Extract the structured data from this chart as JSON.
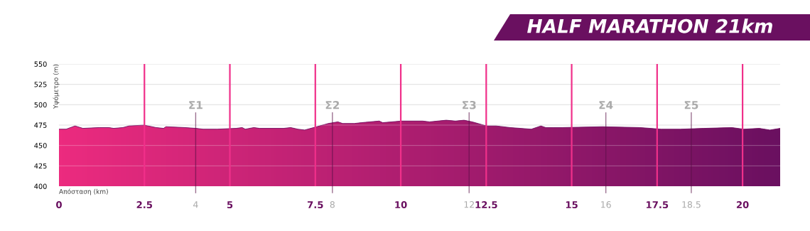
{
  "chart_data": {
    "type": "area",
    "title": "HALF MARATHON 21km",
    "xlabel": "Απόσταση (km)",
    "ylabel": "Υψόμετρο (m)",
    "xlim": [
      0,
      21.1
    ],
    "ylim": [
      400,
      550
    ],
    "xticks": [
      0,
      2.5,
      4,
      5,
      7.5,
      8,
      10,
      12,
      12.5,
      15,
      16,
      17.5,
      18.5,
      20
    ],
    "yticks": [
      400,
      425,
      450,
      475,
      500,
      525,
      550
    ],
    "grid": "y",
    "series": [
      {
        "color": "#ec2b7f",
        "x": [
          0,
          0.21,
          0.47,
          0.7,
          1.18,
          1.46,
          1.6,
          1.87,
          2.05,
          2.49,
          2.84,
          3.06,
          3.13,
          3.68,
          4.01,
          4.22,
          4.63,
          5.18,
          5.36,
          5.45,
          5.7,
          5.87,
          6.57,
          6.78,
          6.99,
          7.19,
          7.54,
          7.88,
          8.16,
          8.3,
          8.64,
          8.85,
          9.37,
          9.47,
          10.02,
          10.64,
          10.84,
          11.33,
          11.6,
          11.85,
          12.09,
          12.51,
          12.79,
          13.2,
          13.82,
          14.1,
          14.24,
          14.45,
          14.72,
          15.9,
          17.0,
          17.62,
          18.18,
          18.87,
          19.69,
          20.03,
          20.49,
          20.8,
          21.1
        ],
        "values": [
          470,
          470,
          474,
          471,
          472,
          472,
          471,
          472,
          474,
          475,
          472,
          471,
          473,
          472,
          471,
          470,
          470,
          471,
          472,
          470,
          472,
          471,
          471,
          472,
          470,
          469,
          473,
          477,
          479,
          477,
          477,
          478,
          480,
          478,
          480,
          480,
          479,
          481,
          480,
          481,
          479,
          474,
          474,
          472,
          470,
          474,
          472,
          472,
          472,
          473,
          472,
          470,
          470,
          471,
          472,
          470,
          471,
          469,
          471
        ]
      }
    ],
    "ref_lines": [
      {
        "axis": "x",
        "value": 2.5,
        "label": null,
        "color": "#f0308a"
      },
      {
        "axis": "x",
        "value": 5,
        "label": null,
        "color": "#f0308a"
      },
      {
        "axis": "x",
        "value": 7.5,
        "label": null,
        "color": "#f0308a"
      },
      {
        "axis": "x",
        "value": 10,
        "label": null,
        "color": "#f0308a"
      },
      {
        "axis": "x",
        "value": 12.5,
        "label": null,
        "color": "#f0308a"
      },
      {
        "axis": "x",
        "value": 15,
        "label": null,
        "color": "#f0308a"
      },
      {
        "axis": "x",
        "value": 17.5,
        "label": null,
        "color": "#f0308a"
      },
      {
        "axis": "x",
        "value": 20,
        "label": null,
        "color": "#f0308a"
      },
      {
        "axis": "x",
        "value": 4,
        "label": "Σ1",
        "color": "#5a1048"
      },
      {
        "axis": "x",
        "value": 8,
        "label": "Σ2",
        "color": "#5a1048"
      },
      {
        "axis": "x",
        "value": 12,
        "label": "Σ3",
        "color": "#5a1048"
      },
      {
        "axis": "x",
        "value": 16,
        "label": "Σ4",
        "color": "#5a1048"
      },
      {
        "axis": "x",
        "value": 18.5,
        "label": "Σ5",
        "color": "#5a1048"
      }
    ]
  }
}
